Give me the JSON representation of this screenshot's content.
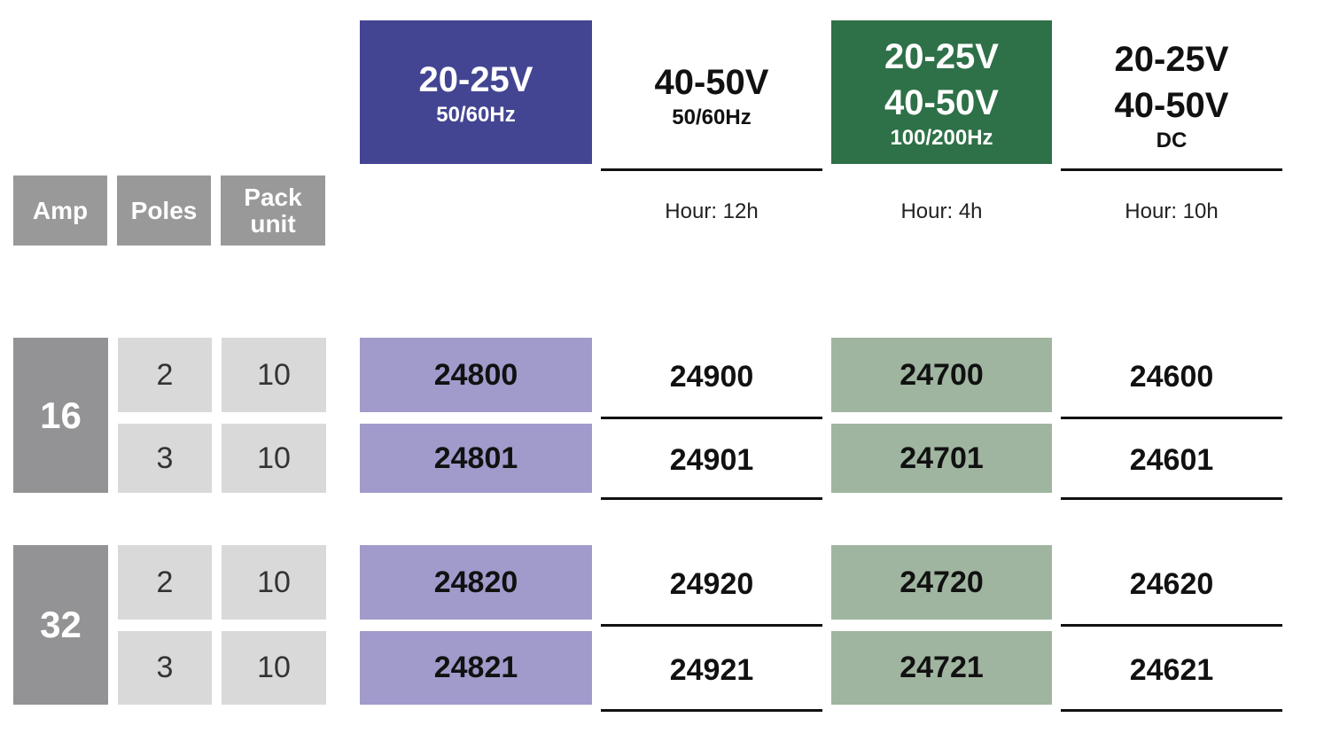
{
  "columns": [
    {
      "lines": [
        "20-25V"
      ],
      "sub": "50/60Hz"
    },
    {
      "lines": [
        "40-50V"
      ],
      "sub": "50/60Hz",
      "hour": "Hour: 12h"
    },
    {
      "lines": [
        "20-25V",
        "40-50V"
      ],
      "sub": "100/200Hz",
      "hour": "Hour: 4h"
    },
    {
      "lines": [
        "20-25V",
        "40-50V"
      ],
      "sub": "DC",
      "hour": "Hour: 10h"
    }
  ],
  "row_headers": [
    "Amp",
    "Poles",
    "Pack unit"
  ],
  "groups": [
    {
      "amp": "16",
      "rows": [
        {
          "poles": "2",
          "pack": "10",
          "codes": [
            "24800",
            "24900",
            "24700",
            "24600"
          ]
        },
        {
          "poles": "3",
          "pack": "10",
          "codes": [
            "24801",
            "24901",
            "24701",
            "24601"
          ]
        }
      ]
    },
    {
      "amp": "32",
      "rows": [
        {
          "poles": "2",
          "pack": "10",
          "codes": [
            "24820",
            "24920",
            "24720",
            "24620"
          ]
        },
        {
          "poles": "3",
          "pack": "10",
          "codes": [
            "24821",
            "24921",
            "24721",
            "24621"
          ]
        }
      ]
    }
  ]
}
